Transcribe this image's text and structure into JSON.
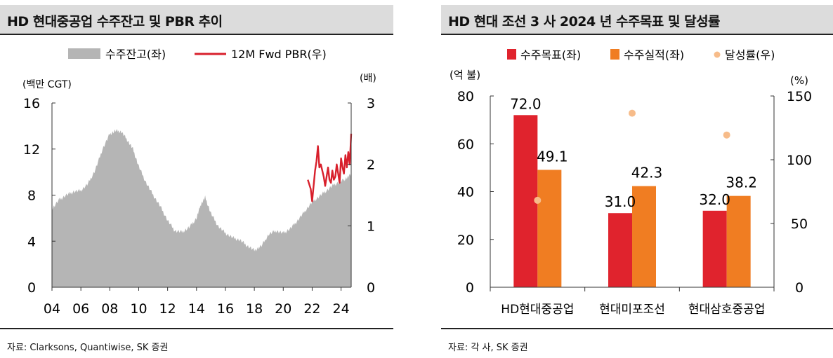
{
  "colors": {
    "area_gray": "#b5b5b5",
    "pbr_red": "#d8202c",
    "target_red": "#e0232d",
    "actual_orange": "#f07d22",
    "rate_peach": "#f7bc8a",
    "title_bg": "#dcdcdc"
  },
  "left": {
    "title": "HD 현대중공업 수주잔고 및 PBR 추이",
    "source": "자료: Clarksons, Quantiwise, SK 증권",
    "legend": {
      "area_label": "수주잔고(좌)",
      "line_label": "12M Fwd PBR(우)"
    },
    "left_unit": "(백만 CGT)",
    "right_unit": "(배)"
  },
  "right": {
    "title": "HD 현대 조선 3 사 2024 년 수주목표 및 달성률",
    "source": "자료: 각 사, SK 증권",
    "legend": {
      "target_label": "수주목표(좌)",
      "actual_label": "수주실적(좌)",
      "rate_label": "달성률(우)"
    },
    "left_unit": "(억 불)",
    "right_unit": "(%)"
  },
  "chart_data": [
    {
      "type": "area",
      "title": "HD 현대중공업 수주잔고 및 PBR 추이",
      "x_ticks": [
        "04",
        "06",
        "08",
        "10",
        "12",
        "14",
        "16",
        "18",
        "20",
        "22",
        "24"
      ],
      "x_range": [
        2004,
        2024.7
      ],
      "y_left_ticks": [
        "0",
        "4",
        "8",
        "12",
        "16"
      ],
      "y_left_range": [
        0,
        16
      ],
      "y_left_label": "(백만 CGT)",
      "y_right_ticks": [
        "0",
        "1",
        "2",
        "3"
      ],
      "y_right_range": [
        0,
        3
      ],
      "y_right_label": "(배)",
      "series": [
        {
          "name": "수주잔고(좌)",
          "axis": "left",
          "points": [
            [
              2004.0,
              6.8
            ],
            [
              2004.5,
              7.6
            ],
            [
              2005.0,
              8.0
            ],
            [
              2005.5,
              8.3
            ],
            [
              2006.0,
              8.4
            ],
            [
              2006.5,
              9.0
            ],
            [
              2007.0,
              10.2
            ],
            [
              2007.5,
              12.0
            ],
            [
              2008.0,
              13.3
            ],
            [
              2008.4,
              13.6
            ],
            [
              2008.8,
              13.5
            ],
            [
              2009.2,
              12.8
            ],
            [
              2009.6,
              12.0
            ],
            [
              2010.0,
              10.5
            ],
            [
              2010.5,
              9.1
            ],
            [
              2011.0,
              8.0
            ],
            [
              2011.5,
              7.0
            ],
            [
              2012.0,
              5.8
            ],
            [
              2012.5,
              4.9
            ],
            [
              2013.0,
              4.8
            ],
            [
              2013.5,
              5.2
            ],
            [
              2014.0,
              6.0
            ],
            [
              2014.3,
              7.2
            ],
            [
              2014.6,
              7.8
            ],
            [
              2015.0,
              6.4
            ],
            [
              2015.5,
              5.3
            ],
            [
              2016.0,
              4.7
            ],
            [
              2016.5,
              4.3
            ],
            [
              2017.0,
              4.1
            ],
            [
              2017.5,
              3.6
            ],
            [
              2018.0,
              3.2
            ],
            [
              2018.5,
              3.6
            ],
            [
              2019.0,
              4.6
            ],
            [
              2019.5,
              4.9
            ],
            [
              2020.0,
              4.7
            ],
            [
              2020.5,
              5.1
            ],
            [
              2021.0,
              5.8
            ],
            [
              2021.5,
              6.6
            ],
            [
              2022.0,
              7.4
            ],
            [
              2022.5,
              7.9
            ],
            [
              2023.0,
              8.4
            ],
            [
              2023.5,
              8.9
            ],
            [
              2024.0,
              9.2
            ],
            [
              2024.4,
              9.5
            ],
            [
              2024.7,
              9.8
            ]
          ]
        },
        {
          "name": "12M Fwd PBR(우)",
          "axis": "right",
          "points": [
            [
              2021.7,
              1.75
            ],
            [
              2021.9,
              1.6
            ],
            [
              2022.0,
              1.4
            ],
            [
              2022.1,
              1.65
            ],
            [
              2022.2,
              1.9
            ],
            [
              2022.3,
              2.05
            ],
            [
              2022.4,
              2.3
            ],
            [
              2022.5,
              1.95
            ],
            [
              2022.6,
              2.0
            ],
            [
              2022.8,
              1.8
            ],
            [
              2022.9,
              1.65
            ],
            [
              2023.0,
              1.8
            ],
            [
              2023.1,
              1.95
            ],
            [
              2023.2,
              1.75
            ],
            [
              2023.3,
              1.7
            ],
            [
              2023.4,
              1.9
            ],
            [
              2023.5,
              1.75
            ],
            [
              2023.6,
              1.8
            ],
            [
              2023.7,
              2.0
            ],
            [
              2023.8,
              1.85
            ],
            [
              2023.9,
              1.7
            ],
            [
              2024.0,
              2.1
            ],
            [
              2024.1,
              1.95
            ],
            [
              2024.2,
              1.85
            ],
            [
              2024.3,
              2.15
            ],
            [
              2024.4,
              1.95
            ],
            [
              2024.5,
              2.2
            ],
            [
              2024.6,
              2.0
            ],
            [
              2024.7,
              2.5
            ]
          ]
        }
      ]
    },
    {
      "type": "bar",
      "title": "HD 현대 조선 3 사 2024 년 수주목표 및 달성률",
      "categories": [
        "HD현대중공업",
        "현대미포조선",
        "현대삼호중공업"
      ],
      "y_left_ticks": [
        "0",
        "20",
        "40",
        "60",
        "80"
      ],
      "y_left_range": [
        0,
        80
      ],
      "y_left_label": "(억 불)",
      "y_right_ticks": [
        "0",
        "50",
        "100",
        "150"
      ],
      "y_right_range": [
        0,
        150
      ],
      "y_right_label": "(%)",
      "series": [
        {
          "name": "수주목표(좌)",
          "axis": "left",
          "values": [
            72.0,
            31.0,
            32.0
          ],
          "labels": [
            "72.0",
            "31.0",
            "32.0"
          ]
        },
        {
          "name": "수주실적(좌)",
          "axis": "left",
          "values": [
            49.1,
            42.3,
            38.2
          ],
          "labels": [
            "49.1",
            "42.3",
            "38.2"
          ]
        },
        {
          "name": "달성률(우)",
          "axis": "right",
          "type": "scatter",
          "values": [
            68.2,
            136.5,
            119.4
          ]
        }
      ]
    }
  ]
}
